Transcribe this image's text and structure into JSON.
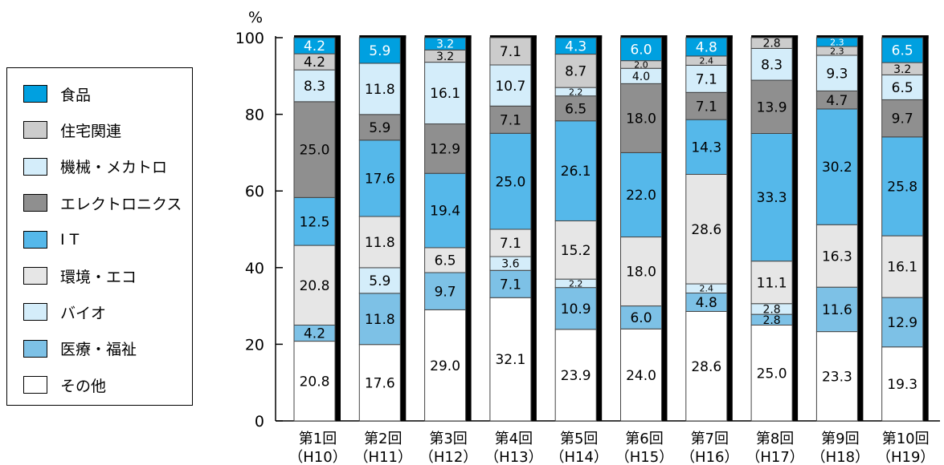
{
  "chart_data": {
    "type": "bar",
    "stacked": true,
    "normalized": true,
    "ylabel": "%",
    "ylim": [
      0,
      100
    ],
    "yticks": [
      0,
      20,
      40,
      60,
      80,
      100
    ],
    "grid": false,
    "legend_position": "left",
    "categories": [
      {
        "line1": "第1回",
        "line2": "（H10）"
      },
      {
        "line1": "第2回",
        "line2": "（H11）"
      },
      {
        "line1": "第3回",
        "line2": "（H12）"
      },
      {
        "line1": "第4回",
        "line2": "（H13）"
      },
      {
        "line1": "第5回",
        "line2": "（H14）"
      },
      {
        "line1": "第6回",
        "line2": "（H15）"
      },
      {
        "line1": "第7回",
        "line2": "（H16）"
      },
      {
        "line1": "第8回",
        "line2": "（H17）"
      },
      {
        "line1": "第9回",
        "line2": "（H18）"
      },
      {
        "line1": "第10回",
        "line2": "（H19）"
      }
    ],
    "series": [
      {
        "name": "その他",
        "color": "#ffffff",
        "values": [
          "20.8",
          "17.6",
          "29.0",
          "32.1",
          "23.9",
          "24.0",
          "28.6",
          "25.0",
          "23.3",
          "19.3"
        ]
      },
      {
        "name": "医療・福祉",
        "color": "#7dc1e6",
        "values": [
          "4.2",
          "11.8",
          "9.7",
          "7.1",
          "10.9",
          "6.0",
          "4.8",
          "2.8",
          "11.6",
          "12.9"
        ]
      },
      {
        "name": "バイオ",
        "color": "#d4edfa",
        "values": [
          "0",
          "5.9",
          "0",
          "3.6",
          "2.2",
          "0",
          "2.4",
          "2.8",
          "0",
          "0"
        ]
      },
      {
        "name": "環境・エコ",
        "color": "#e6e6e6",
        "values": [
          "20.8",
          "11.8",
          "6.5",
          "7.1",
          "15.2",
          "18.0",
          "28.6",
          "11.1",
          "16.3",
          "16.1"
        ]
      },
      {
        "name": "I T",
        "color": "#55b8ea",
        "values": [
          "12.5",
          "17.6",
          "19.4",
          "25.0",
          "26.1",
          "22.0",
          "14.3",
          "33.3",
          "30.2",
          "25.8"
        ]
      },
      {
        "name": "エレクトロニクス",
        "color": "#8f8f8f",
        "values": [
          "25.0",
          "5.9",
          "12.9",
          "7.1",
          "6.5",
          "18.0",
          "7.1",
          "13.9",
          "4.7",
          "9.7"
        ]
      },
      {
        "name": "機械・メカトロ",
        "color": "#d4edfa",
        "values": [
          "8.3",
          "11.8",
          "16.1",
          "10.7",
          "2.2",
          "4.0",
          "7.1",
          "8.3",
          "9.3",
          "6.5"
        ]
      },
      {
        "name": "住宅関連",
        "color": "#cccccc",
        "values": [
          "4.2",
          "0",
          "3.2",
          "7.1",
          "8.7",
          "2.0",
          "2.4",
          "2.8",
          "2.3",
          "3.2"
        ]
      },
      {
        "name": "食品",
        "color": "#00a0e0",
        "values": [
          "4.2",
          "5.9",
          "3.2",
          "0",
          "4.3",
          "6.0",
          "4.8",
          "0",
          "2.3",
          "6.5"
        ]
      }
    ]
  },
  "legend_order": [
    "食品",
    "住宅関連",
    "機械・メカトロ",
    "エレクトロニクス",
    "I T",
    "環境・エコ",
    "バイオ",
    "医療・福祉",
    "その他"
  ]
}
